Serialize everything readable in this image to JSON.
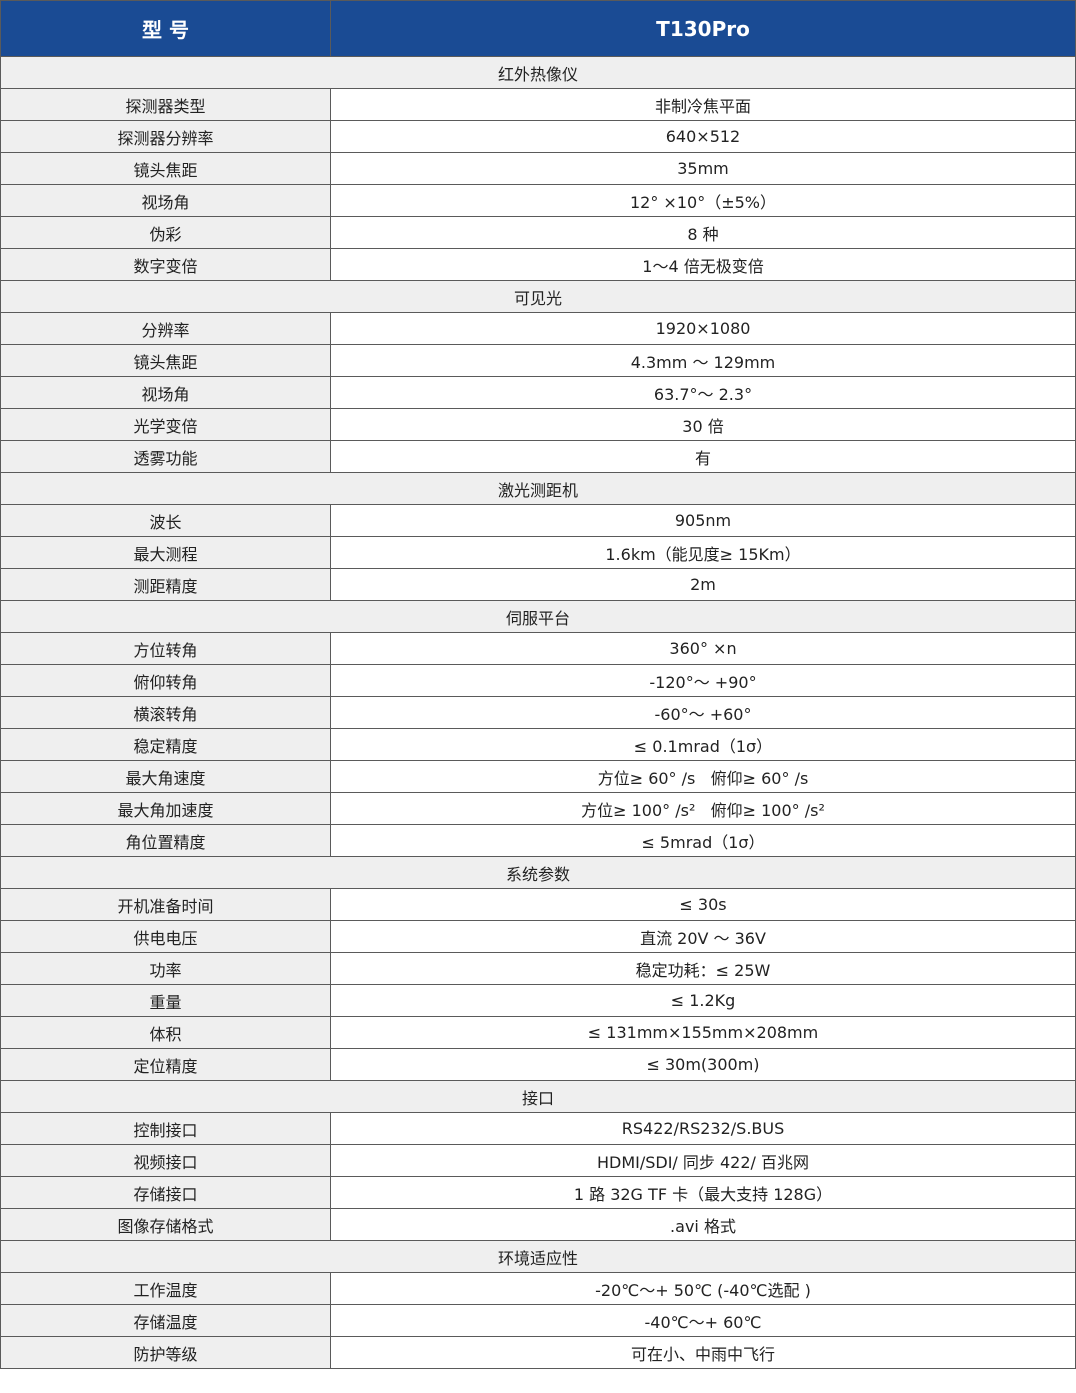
{
  "header": {
    "model_label": "型 号",
    "model_value": "T130Pro"
  },
  "colors": {
    "header_bg": "#1a4b94",
    "section_bg": "#efefef",
    "label_bg": "#efefef"
  },
  "sections": [
    {
      "title": "红外热像仪",
      "rows": [
        {
          "label": "探测器类型",
          "value": "非制冷焦平面"
        },
        {
          "label": "探测器分辨率",
          "value": "640×512"
        },
        {
          "label": "镜头焦距",
          "value": "35mm"
        },
        {
          "label": "视场角",
          "value": "12° ×10°（±5%）"
        },
        {
          "label": "伪彩",
          "value": "8 种"
        },
        {
          "label": "数字变倍",
          "value": "1～4 倍无极变倍"
        }
      ]
    },
    {
      "title": "可见光",
      "rows": [
        {
          "label": "分辨率",
          "value": "1920×1080"
        },
        {
          "label": "镜头焦距",
          "value": "4.3mm ～ 129mm"
        },
        {
          "label": "视场角",
          "value": "63.7°～ 2.3°"
        },
        {
          "label": "光学变倍",
          "value": "30 倍"
        },
        {
          "label": "透雾功能",
          "value": "有"
        }
      ]
    },
    {
      "title": "激光测距机",
      "rows": [
        {
          "label": "波长",
          "value": "905nm"
        },
        {
          "label": "最大测程",
          "value": "1.6km（能见度≥ 15Km）"
        },
        {
          "label": "测距精度",
          "value": "2m"
        }
      ]
    },
    {
      "title": "伺服平台",
      "rows": [
        {
          "label": "方位转角",
          "value": "360° ×n"
        },
        {
          "label": "俯仰转角",
          "value": "-120°～ +90°"
        },
        {
          "label": "横滚转角",
          "value": "-60°～ +60°"
        },
        {
          "label": "稳定精度",
          "value": "≤ 0.1mrad（1σ）"
        },
        {
          "label": "最大角速度",
          "value": "方位≥ 60° /s   俯仰≥ 60° /s"
        },
        {
          "label": "最大角加速度",
          "value": "方位≥ 100° /s²   俯仰≥ 100° /s²"
        },
        {
          "label": "角位置精度",
          "value": "≤ 5mrad（1σ）"
        }
      ]
    },
    {
      "title": "系统参数",
      "rows": [
        {
          "label": "开机准备时间",
          "value": "≤ 30s"
        },
        {
          "label": "供电电压",
          "value": "直流 20V ～ 36V"
        },
        {
          "label": "功率",
          "value": "稳定功耗：≤ 25W"
        },
        {
          "label": "重量",
          "value": "≤ 1.2Kg"
        },
        {
          "label": "体积",
          "value": "≤ 131mm×155mm×208mm"
        },
        {
          "label": "定位精度",
          "value": "≤ 30m(300m)"
        }
      ]
    },
    {
      "title": "接口",
      "rows": [
        {
          "label": "控制接口",
          "value": "RS422/RS232/S.BUS"
        },
        {
          "label": "视频接口",
          "value": "HDMI/SDI/ 同步 422/ 百兆网"
        },
        {
          "label": "存储接口",
          "value": "1 路 32G TF 卡（最大支持 128G）"
        },
        {
          "label": "图像存储格式",
          "value": ".avi 格式"
        }
      ]
    },
    {
      "title": "环境适应性",
      "rows": [
        {
          "label": "工作温度",
          "value": "-20℃～+ 50℃ (-40℃选配 )"
        },
        {
          "label": "存储温度",
          "value": "-40℃～+ 60℃"
        },
        {
          "label": "防护等级",
          "value": "可在小、中雨中飞行"
        }
      ]
    }
  ]
}
